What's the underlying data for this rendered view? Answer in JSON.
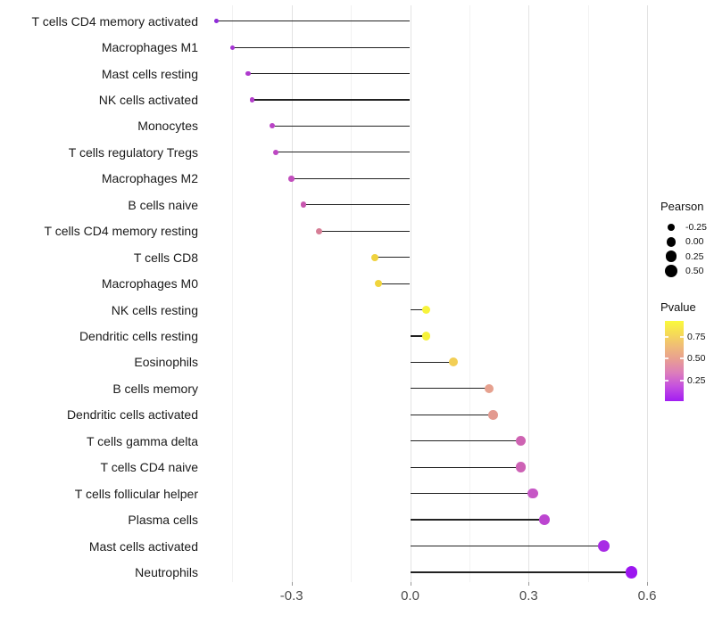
{
  "chart_data": {
    "type": "scatter",
    "subtype": "lollipop",
    "title": "",
    "xlabel": "",
    "ylabel": "",
    "grid": "on",
    "x_axis": {
      "tick_labels": [
        "-0.3",
        "0.0",
        "0.3",
        "0.6"
      ],
      "tick_values": [
        -0.3,
        0.0,
        0.3,
        0.6
      ],
      "minor_values": [
        -0.45,
        -0.15,
        0.15,
        0.45
      ],
      "range": [
        -0.52,
        0.63
      ]
    },
    "points": [
      {
        "label": "T cells CD4 memory activated",
        "pearson": -0.49,
        "color": "#8F2BD8"
      },
      {
        "label": "Macrophages M1",
        "pearson": -0.45,
        "color": "#A535D3"
      },
      {
        "label": "Mast cells resting",
        "pearson": -0.41,
        "color": "#AE3ACD"
      },
      {
        "label": "NK cells activated",
        "pearson": -0.4,
        "color": "#B23DCA"
      },
      {
        "label": "Monocytes",
        "pearson": -0.35,
        "color": "#BA44C6"
      },
      {
        "label": "T cells regulatory  Tregs",
        "pearson": -0.34,
        "color": "#BD47C3"
      },
      {
        "label": "Macrophages M2",
        "pearson": -0.3,
        "color": "#C24EBD"
      },
      {
        "label": "B cells naive",
        "pearson": -0.27,
        "color": "#C857AF"
      },
      {
        "label": "T cells CD4 memory resting",
        "pearson": -0.23,
        "color": "#D67E96"
      },
      {
        "label": "T cells CD8",
        "pearson": -0.09,
        "color": "#EFD23E"
      },
      {
        "label": "Macrophages M0",
        "pearson": -0.08,
        "color": "#F0D43C"
      },
      {
        "label": "NK cells resting",
        "pearson": 0.04,
        "color": "#F7F33B"
      },
      {
        "label": "Dendritic cells resting",
        "pearson": 0.04,
        "color": "#F6F23B"
      },
      {
        "label": "Eosinophils",
        "pearson": 0.11,
        "color": "#F2CE55"
      },
      {
        "label": "B cells memory",
        "pearson": 0.2,
        "color": "#E6A18F"
      },
      {
        "label": "Dendritic cells activated",
        "pearson": 0.21,
        "color": "#E39A90"
      },
      {
        "label": "T cells gamma delta",
        "pearson": 0.28,
        "color": "#CE63B2"
      },
      {
        "label": "T cells CD4 naive",
        "pearson": 0.28,
        "color": "#CD62B5"
      },
      {
        "label": "T cells follicular helper",
        "pearson": 0.31,
        "color": "#C657C5"
      },
      {
        "label": "Plasma cells",
        "pearson": 0.34,
        "color": "#BC45D0"
      },
      {
        "label": "Mast cells activated",
        "pearson": 0.49,
        "color": "#A82BE5"
      },
      {
        "label": "Neutrophils",
        "pearson": 0.56,
        "color": "#9C16F0"
      }
    ],
    "legend_size": {
      "title": "Pearson",
      "entries": [
        "-0.25",
        "0.00",
        "0.25",
        "0.50"
      ]
    },
    "legend_color": {
      "title": "Pvalue",
      "tick_labels": [
        "0.75",
        "0.50",
        "0.25"
      ],
      "gradient_stops": [
        {
          "color": "#FAFA3B",
          "pos": "0%"
        },
        {
          "color": "#F6DC55",
          "pos": "15%"
        },
        {
          "color": "#EFB97A",
          "pos": "33%"
        },
        {
          "color": "#E89E92",
          "pos": "48%"
        },
        {
          "color": "#DC7DBC",
          "pos": "65%"
        },
        {
          "color": "#C44FE0",
          "pos": "82%"
        },
        {
          "color": "#A21DF2",
          "pos": "100%"
        }
      ]
    }
  }
}
